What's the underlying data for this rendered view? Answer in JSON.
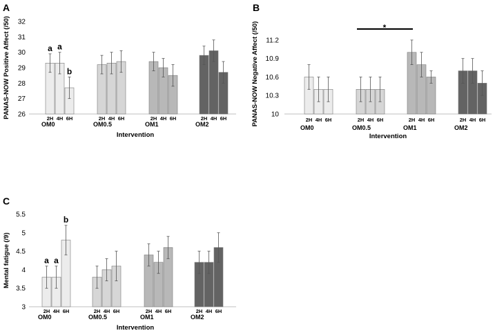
{
  "colors": {
    "OM0": "#ececec",
    "OM0.5": "#d6d6d6",
    "OM1": "#b8b8b8",
    "OM2": "#636363"
  },
  "chart_data": [
    {
      "panel": "A",
      "type": "bar",
      "ylabel": "PANAS-NOW Positive Affect (/50)",
      "xlabel": "Intervention",
      "ylim": [
        26,
        32
      ],
      "yticks": [
        "26",
        "27",
        "28",
        "29",
        "30",
        "31",
        "32"
      ],
      "categories": [
        "2H",
        "4H",
        "6H"
      ],
      "groups": [
        {
          "name": "OM0",
          "values": [
            29.3,
            29.3,
            27.7
          ],
          "errors": [
            0.6,
            0.7,
            0.7
          ],
          "labels": [
            "a",
            "a",
            "b"
          ]
        },
        {
          "name": "OM0.5",
          "values": [
            29.2,
            29.3,
            29.4
          ],
          "errors": [
            0.6,
            0.7,
            0.7
          ],
          "labels": [
            "",
            "",
            ""
          ]
        },
        {
          "name": "OM1",
          "values": [
            29.4,
            29.0,
            28.5
          ],
          "errors": [
            0.6,
            0.6,
            0.7
          ],
          "labels": [
            "",
            "",
            ""
          ]
        },
        {
          "name": "OM2",
          "values": [
            29.8,
            30.1,
            28.7
          ],
          "errors": [
            0.6,
            0.7,
            0.7
          ],
          "labels": [
            "",
            "",
            ""
          ]
        }
      ]
    },
    {
      "panel": "B",
      "type": "bar",
      "ylabel": "PANAS-NOW Negative Affect (/50)",
      "xlabel": "Intervention",
      "ylim": [
        10,
        11.3
      ],
      "yticks": [
        "10",
        "10.3",
        "10.6",
        "10.9",
        "11.2"
      ],
      "categories": [
        "2H",
        "4H",
        "6H"
      ],
      "significance": "*",
      "groups": [
        {
          "name": "OM0",
          "values": [
            10.6,
            10.4,
            10.4
          ],
          "errors": [
            0.2,
            0.2,
            0.2
          ],
          "labels": [
            "",
            "",
            ""
          ]
        },
        {
          "name": "OM0.5",
          "values": [
            10.4,
            10.4,
            10.4
          ],
          "errors": [
            0.2,
            0.2,
            0.2
          ],
          "labels": [
            "",
            "",
            ""
          ]
        },
        {
          "name": "OM1",
          "values": [
            11.0,
            10.8,
            10.6
          ],
          "errors": [
            0.2,
            0.2,
            0.1
          ],
          "labels": [
            "",
            "",
            ""
          ]
        },
        {
          "name": "OM2",
          "values": [
            10.7,
            10.7,
            10.5
          ],
          "errors": [
            0.2,
            0.2,
            0.2
          ],
          "labels": [
            "",
            "",
            ""
          ]
        }
      ]
    },
    {
      "panel": "C",
      "type": "bar",
      "ylabel": "Mental fatigue (/9)",
      "xlabel": "Intervention",
      "ylim": [
        3,
        5.5
      ],
      "yticks": [
        "3",
        "3.5",
        "4",
        "4.5",
        "5",
        "5.5"
      ],
      "categories": [
        "2H",
        "4H",
        "6H"
      ],
      "groups": [
        {
          "name": "OM0",
          "values": [
            3.8,
            3.8,
            4.8
          ],
          "errors": [
            0.3,
            0.3,
            0.4
          ],
          "labels": [
            "a",
            "a",
            "b"
          ]
        },
        {
          "name": "OM0.5",
          "values": [
            3.8,
            4.0,
            4.1
          ],
          "errors": [
            0.3,
            0.3,
            0.4
          ],
          "labels": [
            "",
            "",
            ""
          ]
        },
        {
          "name": "OM1",
          "values": [
            4.4,
            4.2,
            4.6
          ],
          "errors": [
            0.3,
            0.3,
            0.3
          ],
          "labels": [
            "",
            "",
            ""
          ]
        },
        {
          "name": "OM2",
          "values": [
            4.2,
            4.2,
            4.6
          ],
          "errors": [
            0.3,
            0.3,
            0.4
          ],
          "labels": [
            "",
            "",
            ""
          ]
        }
      ]
    }
  ]
}
